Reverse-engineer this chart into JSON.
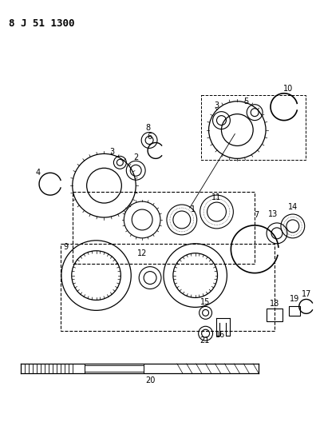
{
  "title": "8 J 51 1300",
  "background_color": "#ffffff",
  "line_color": "#000000"
}
